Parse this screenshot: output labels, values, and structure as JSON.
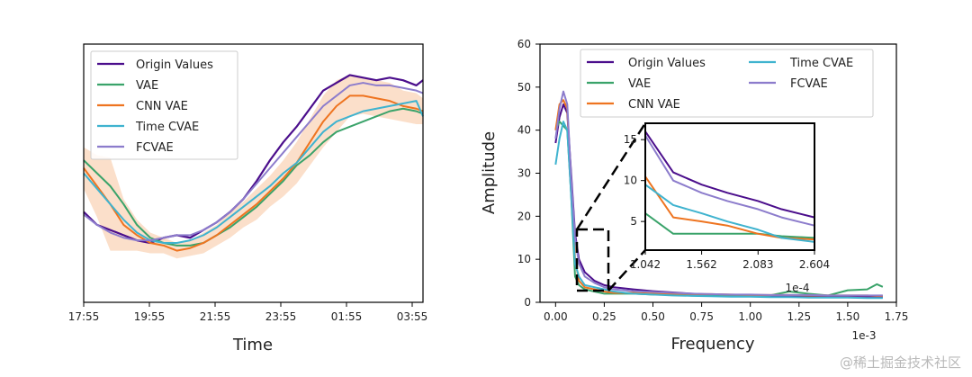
{
  "colors": {
    "origin": "#4b0e8c",
    "vae": "#3aa36a",
    "cnn": "#ee7420",
    "time": "#3fb3cf",
    "fcvae": "#8c7ccc",
    "shade": "#f7b98a"
  },
  "chart_data": [
    {
      "type": "line",
      "title": "",
      "xlabel": "Time",
      "ylabel": "",
      "xtick_labels": [
        "17:55",
        "19:55",
        "21:55",
        "23:55",
        "01:55",
        "03:55"
      ],
      "xlim": [
        0,
        10.2
      ],
      "ylim": [
        0,
        1
      ],
      "legend": {
        "position": "top-left",
        "entries": [
          "Origin Values",
          "VAE",
          "CNN VAE",
          "Time CVAE",
          "FCVAE"
        ]
      },
      "x": [
        0,
        0.4,
        0.8,
        1.2,
        1.6,
        2.0,
        2.4,
        2.8,
        3.2,
        3.6,
        4.0,
        4.4,
        4.8,
        5.2,
        5.6,
        6.0,
        6.4,
        6.8,
        7.2,
        7.6,
        8.0,
        8.4,
        8.8,
        9.2,
        9.6,
        10.0,
        10.2
      ],
      "series": [
        {
          "name": "Origin Values",
          "key": "origin",
          "values": [
            0.35,
            0.3,
            0.28,
            0.26,
            0.24,
            0.23,
            0.25,
            0.26,
            0.25,
            0.28,
            0.31,
            0.35,
            0.4,
            0.47,
            0.55,
            0.62,
            0.68,
            0.75,
            0.82,
            0.85,
            0.88,
            0.87,
            0.86,
            0.87,
            0.86,
            0.84,
            0.86
          ]
        },
        {
          "name": "VAE",
          "key": "vae",
          "values": [
            0.55,
            0.5,
            0.45,
            0.38,
            0.3,
            0.25,
            0.23,
            0.22,
            0.22,
            0.23,
            0.26,
            0.29,
            0.33,
            0.37,
            0.42,
            0.47,
            0.53,
            0.57,
            0.62,
            0.66,
            0.68,
            0.7,
            0.72,
            0.74,
            0.75,
            0.74,
            0.73
          ]
        },
        {
          "name": "CNN VAE",
          "key": "cnn",
          "values": [
            0.52,
            0.45,
            0.38,
            0.3,
            0.26,
            0.23,
            0.22,
            0.2,
            0.21,
            0.23,
            0.26,
            0.3,
            0.34,
            0.38,
            0.43,
            0.48,
            0.54,
            0.62,
            0.7,
            0.76,
            0.8,
            0.8,
            0.79,
            0.78,
            0.76,
            0.75,
            0.74
          ]
        },
        {
          "name": "Time CVAE",
          "key": "time",
          "values": [
            0.5,
            0.44,
            0.38,
            0.32,
            0.27,
            0.24,
            0.23,
            0.23,
            0.24,
            0.26,
            0.29,
            0.33,
            0.37,
            0.41,
            0.45,
            0.5,
            0.54,
            0.6,
            0.66,
            0.7,
            0.72,
            0.74,
            0.75,
            0.76,
            0.77,
            0.78,
            0.72
          ]
        },
        {
          "name": "FCVAE",
          "key": "fcvae",
          "values": [
            0.34,
            0.3,
            0.27,
            0.25,
            0.24,
            0.24,
            0.25,
            0.26,
            0.26,
            0.28,
            0.31,
            0.35,
            0.4,
            0.46,
            0.52,
            0.58,
            0.64,
            0.7,
            0.76,
            0.8,
            0.84,
            0.85,
            0.84,
            0.84,
            0.83,
            0.82,
            0.81
          ]
        }
      ]
    },
    {
      "type": "line",
      "title": "",
      "xlabel": "Frequency",
      "ylabel": "Amplitude",
      "x_scale_label": "1e-3",
      "xlim": [
        -0.08,
        1.75
      ],
      "ylim": [
        0,
        60
      ],
      "xticks": [
        0.0,
        0.25,
        0.5,
        0.75,
        1.0,
        1.25,
        1.5,
        1.75
      ],
      "xtick_labels": [
        "0.00",
        "0.25",
        "0.50",
        "0.75",
        "1.00",
        "1.25",
        "1.50",
        "1.75"
      ],
      "yticks": [
        0,
        10,
        20,
        30,
        40,
        50,
        60
      ],
      "ytick_labels": [
        "0",
        "10",
        "20",
        "30",
        "40",
        "50",
        "60"
      ],
      "legend": {
        "position": "top-right",
        "entries": [
          "Origin Values",
          "VAE",
          "CNN VAE",
          "Time CVAE",
          "FCVAE"
        ]
      },
      "x": [
        0.0,
        0.02,
        0.04,
        0.06,
        0.08,
        0.1,
        0.12,
        0.15,
        0.2,
        0.25,
        0.3,
        0.4,
        0.5,
        0.6,
        0.7,
        0.8,
        0.9,
        1.0,
        1.1,
        1.2,
        1.3,
        1.4,
        1.5,
        1.6,
        1.65,
        1.68
      ],
      "series": [
        {
          "name": "Origin Values",
          "key": "origin",
          "values": [
            37,
            43,
            46,
            44,
            30,
            16,
            10,
            7,
            5,
            4,
            3.5,
            3,
            2.6,
            2.3,
            2,
            1.8,
            1.7,
            1.6,
            1.5,
            1.4,
            1.4,
            1.3,
            1.3,
            1.2,
            1.2,
            1.2
          ]
        },
        {
          "name": "VAE",
          "key": "vae",
          "values": [
            40,
            42,
            41,
            40,
            25,
            6,
            4,
            3,
            2.5,
            2,
            2,
            2,
            1.8,
            1.8,
            1.6,
            1.6,
            1.6,
            1.6,
            1.6,
            2.5,
            2,
            1.6,
            2.8,
            3,
            4.2,
            3.6
          ]
        },
        {
          "name": "CNN VAE",
          "key": "cnn",
          "values": [
            40,
            46,
            47,
            45,
            28,
            10,
            5,
            3.5,
            3,
            2.5,
            2.2,
            2.2,
            2,
            2,
            1.9,
            1.9,
            1.8,
            1.7,
            1.7,
            1.7,
            1.6,
            1.6,
            1.6,
            1.6,
            1.5,
            1.5
          ]
        },
        {
          "name": "Time CVAE",
          "key": "time",
          "values": [
            32,
            38,
            42,
            40,
            25,
            9,
            6,
            4,
            3.5,
            3,
            2.5,
            2,
            1.8,
            1.6,
            1.5,
            1.4,
            1.3,
            1.3,
            1.2,
            1.2,
            1.1,
            1.1,
            1.1,
            1.0,
            1.0,
            1.0
          ]
        },
        {
          "name": "FCVAE",
          "key": "fcvae",
          "values": [
            38,
            45,
            49,
            46,
            29,
            15,
            9,
            6,
            4.5,
            3.5,
            3,
            2.6,
            2.4,
            2.2,
            2,
            1.9,
            1.8,
            1.8,
            1.7,
            1.7,
            1.7,
            1.6,
            1.6,
            1.6,
            1.6,
            1.6
          ]
        }
      ],
      "inset": {
        "x_scale_label": "1e-4",
        "xlim": [
          1.042,
          2.604
        ],
        "ylim": [
          1.5,
          17
        ],
        "xticks": [
          1.042,
          1.562,
          2.083,
          2.604
        ],
        "xtick_labels": [
          "1.042",
          "1.562",
          "2.083",
          "2.604"
        ],
        "yticks": [
          5,
          10,
          15
        ],
        "ytick_labels": [
          "5",
          "10",
          "15"
        ],
        "x": [
          1.042,
          1.3,
          1.562,
          1.8,
          2.083,
          2.3,
          2.604
        ],
        "series": [
          {
            "name": "Origin Values",
            "key": "origin",
            "values": [
              16.0,
              11.0,
              9.5,
              8.5,
              7.5,
              6.5,
              5.5
            ]
          },
          {
            "name": "VAE",
            "key": "vae",
            "values": [
              6.0,
              3.5,
              3.5,
              3.5,
              3.5,
              3.2,
              3.0
            ]
          },
          {
            "name": "CNN VAE",
            "key": "cnn",
            "values": [
              10.5,
              5.5,
              5.0,
              4.5,
              3.5,
              3.0,
              2.8
            ]
          },
          {
            "name": "Time CVAE",
            "key": "time",
            "values": [
              9.5,
              7.0,
              6.0,
              5.0,
              4.0,
              3.0,
              2.5
            ]
          },
          {
            "name": "FCVAE",
            "key": "fcvae",
            "values": [
              15.5,
              10.0,
              8.5,
              7.5,
              6.5,
              5.5,
              4.5
            ]
          }
        ]
      }
    }
  ],
  "watermark": "@稀土掘金技术社区"
}
